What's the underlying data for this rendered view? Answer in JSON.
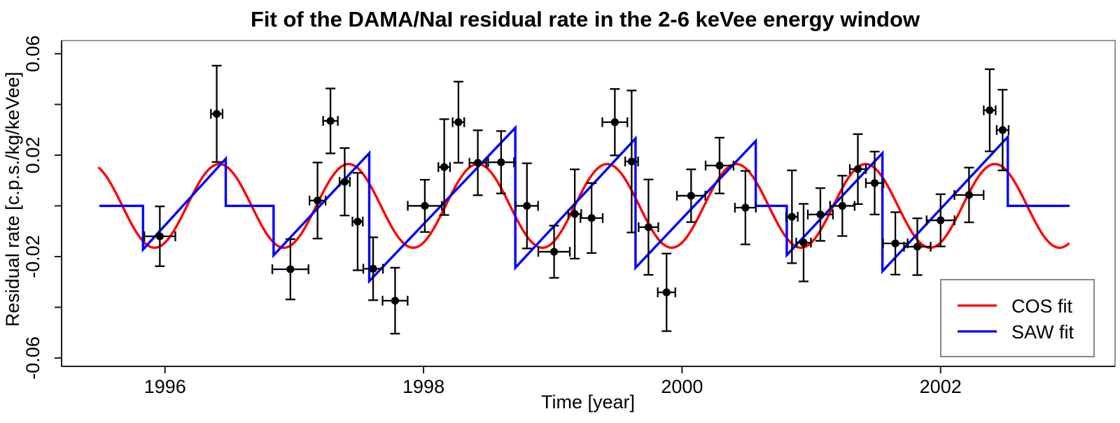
{
  "chart_data": {
    "type": "scatter",
    "title": "Fit of the DAMA/NaI residual rate in the 2-6 keVee energy window",
    "xlabel": "Time [year]",
    "ylabel": "Residual rate [c.p.s./kg/keVee]",
    "xlim": [
      1995.2,
      2003.35
    ],
    "ylim": [
      -0.0633,
      0.0652
    ],
    "x_ticks": [
      1996,
      1998,
      2000,
      2002
    ],
    "y_ticks": [
      {
        "v": 0.06,
        "label": "0.06"
      },
      {
        "v": 0.04,
        "label": ""
      },
      {
        "v": 0.02,
        "label": "0.02"
      },
      {
        "v": 0.0,
        "label": ""
      },
      {
        "v": -0.02,
        "label": "-0.02"
      },
      {
        "v": -0.04,
        "label": ""
      },
      {
        "v": -0.06,
        "label": "-0.06"
      }
    ],
    "grid": "off",
    "frame_color": "#969696",
    "axis_color": "#1a1a1a",
    "point_color": "#000000",
    "legend": {
      "position": "bottom-right",
      "entries": [
        {
          "label": "COS fit",
          "color": "#ff0000"
        },
        {
          "label": "SAW fit",
          "color": "#0000ff"
        }
      ]
    },
    "series": [
      {
        "name": "COS fit",
        "type": "cosine",
        "color": "#ff0000",
        "amplitude": 0.0165,
        "period_years": 1.0,
        "phase_max_year": 1996.42,
        "t_start": 1995.49,
        "t_end": 2002.99
      },
      {
        "name": "SAW fit",
        "type": "polyline",
        "color": "#0000ff",
        "vertices": [
          [
            1995.5,
            0.0
          ],
          [
            1995.83,
            0.0
          ],
          [
            1995.83,
            -0.0172
          ],
          [
            1996.47,
            0.0186
          ],
          [
            1996.47,
            0.0
          ],
          [
            1996.84,
            0.0
          ],
          [
            1996.84,
            -0.0195
          ],
          [
            1997.58,
            0.0208
          ],
          [
            1997.58,
            -0.0297
          ],
          [
            1998.71,
            0.0308
          ],
          [
            1998.71,
            -0.0244
          ],
          [
            1999.64,
            0.0266
          ],
          [
            1999.64,
            -0.0244
          ],
          [
            2000.57,
            0.0256
          ],
          [
            2000.57,
            0.0
          ],
          [
            2000.81,
            0.0
          ],
          [
            2000.81,
            -0.0194
          ],
          [
            2001.55,
            0.0208
          ],
          [
            2001.55,
            -0.0258
          ],
          [
            2002.52,
            0.0272
          ],
          [
            2002.52,
            0.0
          ],
          [
            2002.99,
            0.0
          ]
        ]
      },
      {
        "name": "DAMA/NaI residuals",
        "type": "scatter-error",
        "color": "#000000",
        "points": [
          {
            "t": 1995.96,
            "y": -0.012,
            "xerr": 0.12,
            "yerr": 0.0118
          },
          {
            "t": 1996.4,
            "y": 0.0363,
            "xerr": 0.045,
            "yerr": 0.019
          },
          {
            "t": 1996.97,
            "y": -0.025,
            "xerr": 0.14,
            "yerr": 0.0119
          },
          {
            "t": 1997.18,
            "y": 0.0021,
            "xerr": 0.062,
            "yerr": 0.015
          },
          {
            "t": 1997.28,
            "y": 0.0335,
            "xerr": 0.057,
            "yerr": 0.0128
          },
          {
            "t": 1997.39,
            "y": 0.0095,
            "xerr": 0.04,
            "yerr": 0.0133
          },
          {
            "t": 1997.49,
            "y": -0.0062,
            "xerr": 0.04,
            "yerr": 0.0192
          },
          {
            "t": 1997.61,
            "y": -0.0248,
            "xerr": 0.076,
            "yerr": 0.0124
          },
          {
            "t": 1997.78,
            "y": -0.0374,
            "xerr": 0.097,
            "yerr": 0.013
          },
          {
            "t": 1998.01,
            "y": 0.0,
            "xerr": 0.132,
            "yerr": 0.0103
          },
          {
            "t": 1998.16,
            "y": 0.0153,
            "xerr": 0.045,
            "yerr": 0.0189
          },
          {
            "t": 1998.27,
            "y": 0.033,
            "xerr": 0.045,
            "yerr": 0.016
          },
          {
            "t": 1998.42,
            "y": 0.017,
            "xerr": 0.065,
            "yerr": 0.0128
          },
          {
            "t": 1998.6,
            "y": 0.0172,
            "xerr": 0.1,
            "yerr": 0.0123
          },
          {
            "t": 1998.8,
            "y": 0.0,
            "xerr": 0.086,
            "yerr": 0.0168
          },
          {
            "t": 1999.01,
            "y": -0.0181,
            "xerr": 0.122,
            "yerr": 0.0103
          },
          {
            "t": 1999.17,
            "y": -0.0032,
            "xerr": 0.05,
            "yerr": 0.0176
          },
          {
            "t": 1999.3,
            "y": -0.0048,
            "xerr": 0.086,
            "yerr": 0.0138
          },
          {
            "t": 1999.48,
            "y": 0.033,
            "xerr": 0.097,
            "yerr": 0.0131
          },
          {
            "t": 1999.61,
            "y": 0.0175,
            "xerr": 0.05,
            "yerr": 0.028
          },
          {
            "t": 1999.74,
            "y": -0.0084,
            "xerr": 0.076,
            "yerr": 0.0188
          },
          {
            "t": 1999.88,
            "y": -0.0341,
            "xerr": 0.068,
            "yerr": 0.0153
          },
          {
            "t": 2000.07,
            "y": 0.004,
            "xerr": 0.11,
            "yerr": 0.0104
          },
          {
            "t": 2000.29,
            "y": 0.0159,
            "xerr": 0.108,
            "yerr": 0.011
          },
          {
            "t": 2000.49,
            "y": -0.0007,
            "xerr": 0.081,
            "yerr": 0.0145
          },
          {
            "t": 2000.85,
            "y": -0.0043,
            "xerr": 0.045,
            "yerr": 0.0183
          },
          {
            "t": 2000.94,
            "y": -0.0145,
            "xerr": 0.057,
            "yerr": 0.0153
          },
          {
            "t": 2001.07,
            "y": -0.0034,
            "xerr": 0.097,
            "yerr": 0.0104
          },
          {
            "t": 2001.24,
            "y": 0.0,
            "xerr": 0.095,
            "yerr": 0.0119
          },
          {
            "t": 2001.36,
            "y": 0.0145,
            "xerr": 0.062,
            "yerr": 0.0138
          },
          {
            "t": 2001.49,
            "y": 0.009,
            "xerr": 0.068,
            "yerr": 0.0124
          },
          {
            "t": 2001.65,
            "y": -0.0148,
            "xerr": 0.095,
            "yerr": 0.0123
          },
          {
            "t": 2001.82,
            "y": -0.0161,
            "xerr": 0.103,
            "yerr": 0.0112
          },
          {
            "t": 2002.0,
            "y": -0.0057,
            "xerr": 0.108,
            "yerr": 0.0103
          },
          {
            "t": 2002.22,
            "y": 0.0043,
            "xerr": 0.113,
            "yerr": 0.0108
          },
          {
            "t": 2002.38,
            "y": 0.0377,
            "xerr": 0.046,
            "yerr": 0.0162
          },
          {
            "t": 2002.48,
            "y": 0.0299,
            "xerr": 0.046,
            "yerr": 0.0159
          }
        ]
      }
    ]
  }
}
